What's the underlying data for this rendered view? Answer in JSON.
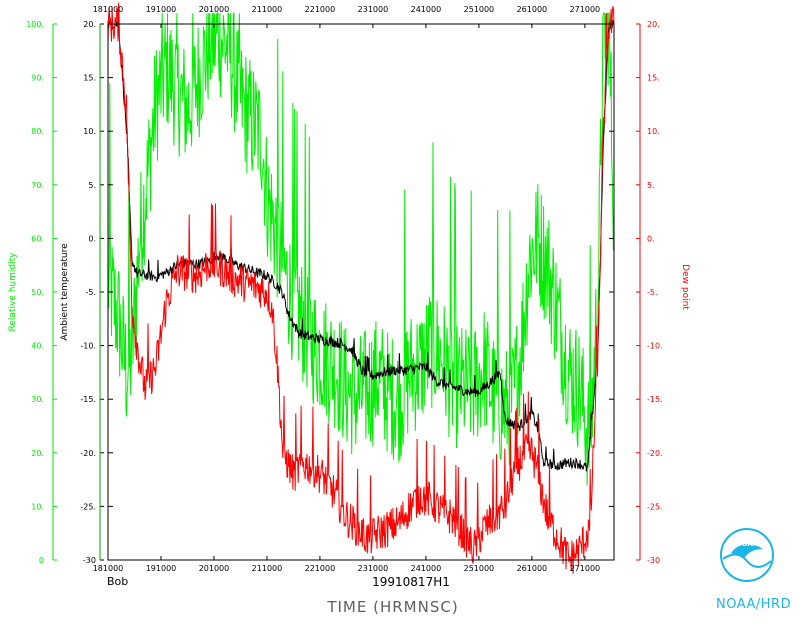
{
  "chart_data": {
    "type": "line",
    "storm": "Bob",
    "flight": "19910817H1",
    "xlabel": "TIME (HRMNSC)",
    "x_ticks": [
      "181000",
      "191000",
      "201000",
      "211000",
      "221000",
      "231000",
      "241000",
      "251000",
      "261000",
      "271000"
    ],
    "xlim": [
      181000,
      276500
    ],
    "axes": {
      "relative_humidity": {
        "label": "Relative humidity",
        "ylim": [
          0,
          100
        ],
        "ticks": [
          "0",
          "10.",
          "20.",
          "30.",
          "40.",
          "50.",
          "60.",
          "70.",
          "80.",
          "90.",
          "100."
        ]
      },
      "ambient_temperature": {
        "label": "Ambient temperature",
        "ylim": [
          -30,
          20
        ],
        "ticks": [
          "-30",
          "-25.",
          "-20.",
          "-15.",
          "-10.",
          "-5.",
          "0.",
          "5.",
          "10.",
          "15.",
          "20."
        ]
      },
      "dew_point": {
        "label": "Dew point",
        "ylim": [
          -30,
          20
        ],
        "ticks": [
          "-30",
          "-25.",
          "-20.",
          "-15.",
          "-10.",
          "-5.",
          "0.",
          "5.",
          "10.",
          "15.",
          "20."
        ]
      }
    },
    "series": [
      {
        "name": "Relative humidity",
        "axis": "relative_humidity",
        "color": "#00ee00",
        "noise": 12,
        "x": [
          181000,
          183000,
          184500,
          185500,
          187000,
          188500,
          190000,
          192000,
          194000,
          196000,
          198000,
          200000,
          202000,
          204000,
          206000,
          208000,
          210000,
          211000,
          212500,
          214000,
          216000,
          218000,
          220000,
          222000,
          224000,
          226000,
          228000,
          230000,
          232000,
          234000,
          236000,
          238000,
          240000,
          242000,
          244000,
          246000,
          248000,
          250000,
          252000,
          254000,
          256000,
          257500,
          259000,
          260500,
          262000,
          264000,
          266000,
          268000,
          270000,
          272000,
          273500,
          274500,
          275500,
          276500
        ],
        "values": [
          52,
          45,
          35,
          38,
          60,
          72,
          85,
          92,
          88,
          84,
          90,
          96,
          98,
          95,
          86,
          82,
          79,
          68,
          62,
          55,
          48,
          44,
          40,
          38,
          36,
          32,
          30,
          32,
          34,
          31,
          30,
          35,
          36,
          40,
          38,
          33,
          32,
          32,
          36,
          30,
          28,
          30,
          40,
          56,
          60,
          55,
          45,
          35,
          32,
          22,
          50,
          100,
          100,
          65
        ]
      },
      {
        "name": "Ambient temperature",
        "axis": "ambient_temperature",
        "color": "#000000",
        "noise": 0.5,
        "x": [
          181000,
          183000,
          184500,
          185500,
          186500,
          188000,
          190000,
          192000,
          194000,
          196000,
          198000,
          200000,
          201500,
          203000,
          205000,
          207000,
          209000,
          211000,
          213000,
          214000,
          215000,
          217000,
          219000,
          221000,
          223000,
          225000,
          227000,
          229000,
          231000,
          233000,
          235000,
          237000,
          239000,
          241000,
          243000,
          245000,
          247000,
          249000,
          251000,
          253000,
          255000,
          256000,
          257000,
          258500,
          260000,
          261000,
          262000,
          262500,
          263000,
          264000,
          265000,
          266000,
          267000,
          268000,
          270000,
          271500,
          272500,
          273500,
          274500,
          275500,
          276500
        ],
        "values": [
          20,
          20,
          10,
          -2,
          -3.3,
          -3.4,
          -3.6,
          -3.2,
          -2.5,
          -2.3,
          -2.4,
          -2.1,
          -1.5,
          -1.8,
          -2.4,
          -2.8,
          -3.2,
          -3.5,
          -4.4,
          -5.2,
          -7,
          -8.8,
          -9.2,
          -9.4,
          -9.6,
          -9.8,
          -10.4,
          -12.4,
          -12.8,
          -12.5,
          -12.3,
          -12.3,
          -12.1,
          -12,
          -13.3,
          -13.7,
          -14,
          -14.3,
          -14.3,
          -13.5,
          -12.5,
          -17,
          -17.2,
          -17.6,
          -16.8,
          -16.3,
          -17.6,
          -18.4,
          -20.7,
          -21,
          -21.1,
          -21.2,
          -21,
          -20.9,
          -21,
          -21.5,
          -16,
          -10,
          9,
          20,
          20
        ]
      },
      {
        "name": "Dew point",
        "axis": "dew_point",
        "color": "#ff0000",
        "noise": 1.8,
        "x": [
          181000,
          183000,
          184500,
          185500,
          186500,
          188000,
          190000,
          192000,
          194000,
          196000,
          198000,
          200000,
          201500,
          203000,
          205000,
          207000,
          209000,
          211000,
          212000,
          213000,
          214000,
          216000,
          218000,
          220000,
          222000,
          224000,
          226000,
          228000,
          230000,
          232000,
          234000,
          236000,
          238000,
          240000,
          242000,
          244000,
          246000,
          248000,
          250000,
          252000,
          254000,
          256000,
          257500,
          259000,
          260000,
          261000,
          262000,
          263000,
          264000,
          266000,
          268000,
          270000,
          272000,
          273500,
          274500,
          275500,
          276500
        ],
        "values": [
          20,
          20,
          12,
          -6,
          -10,
          -14,
          -12,
          -6,
          -3,
          -3.2,
          -3.4,
          -2.3,
          -2.5,
          -3,
          -3.8,
          -4.2,
          -4.5,
          -5,
          -6.5,
          -12,
          -20,
          -22,
          -21,
          -21.5,
          -22.5,
          -24,
          -26,
          -27,
          -28,
          -27.5,
          -27,
          -26.5,
          -25,
          -24,
          -24.5,
          -25.5,
          -26,
          -27.5,
          -29,
          -27,
          -26,
          -25,
          -22,
          -20.5,
          -19.8,
          -20,
          -21.5,
          -24,
          -26,
          -28,
          -30,
          -29,
          -27,
          -10,
          10,
          20,
          20
        ]
      }
    ]
  },
  "footer": {
    "logo_text": "NOAA",
    "org": "NOAA/HRD"
  },
  "colors": {
    "rh": "#00ee00",
    "temp": "#000000",
    "dew": "#ff0000",
    "logo": "#19b5e6"
  }
}
